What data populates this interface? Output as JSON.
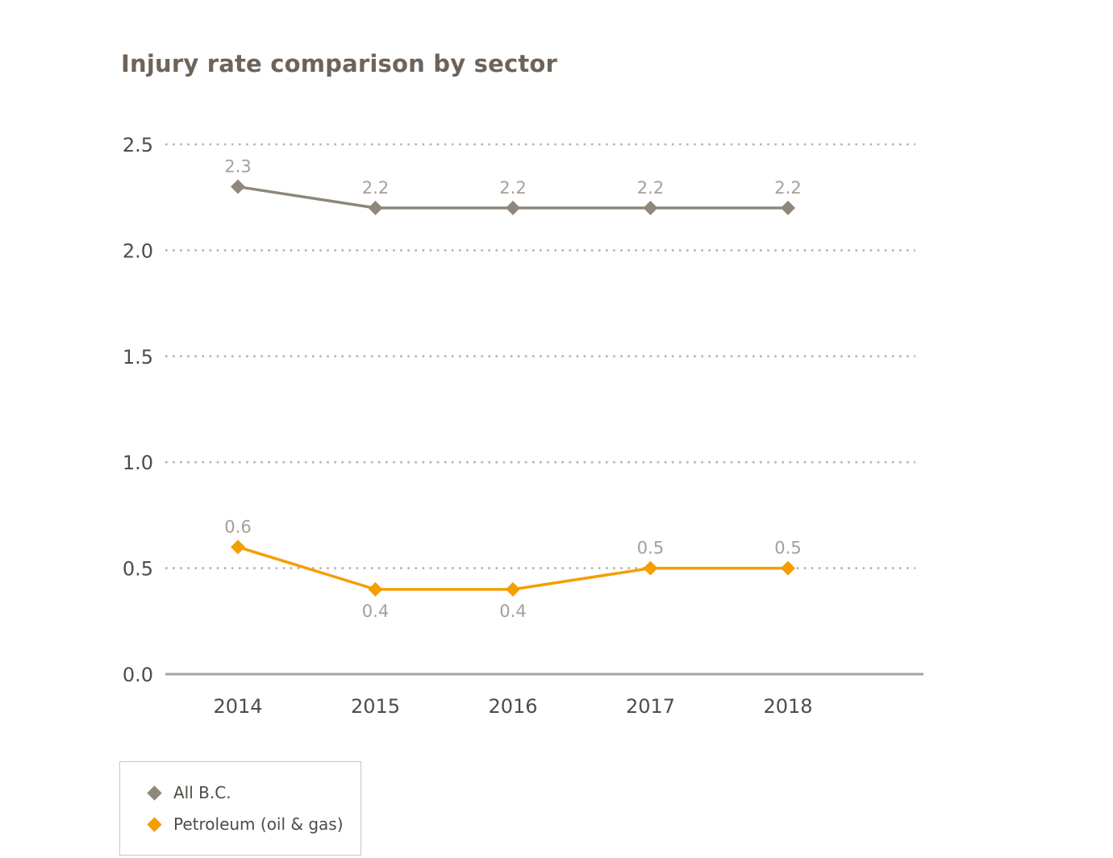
{
  "chart_data": {
    "type": "line",
    "title": "Injury rate comparison by sector",
    "categories": [
      "2014",
      "2015",
      "2016",
      "2017",
      "2018"
    ],
    "series": [
      {
        "name": "All B.C.",
        "color": "#8f877c",
        "values": [
          2.3,
          2.2,
          2.2,
          2.2,
          2.2
        ],
        "label_positions": [
          "above",
          "above",
          "above",
          "above",
          "above"
        ]
      },
      {
        "name": "Petroleum (oil & gas)",
        "color": "#f59e00",
        "values": [
          0.6,
          0.4,
          0.4,
          0.5,
          0.5
        ],
        "label_positions": [
          "above",
          "below",
          "below",
          "above",
          "above"
        ]
      }
    ],
    "ylim": [
      0,
      2.5
    ],
    "yticks": [
      0.0,
      0.5,
      1.0,
      1.5,
      2.0,
      2.5
    ],
    "ytick_labels": [
      "0.0",
      "0.5",
      "1.0",
      "1.5",
      "2.0",
      "2.5"
    ],
    "xlabel": "",
    "ylabel": "",
    "grid": "horizontal-dotted",
    "legend_position": "bottom-left",
    "value_label_color": "#a59f97",
    "axis_text_color": "#4f4b46",
    "gridline_color": "#b5b2ad",
    "baseline_color": "#a9a29b"
  }
}
